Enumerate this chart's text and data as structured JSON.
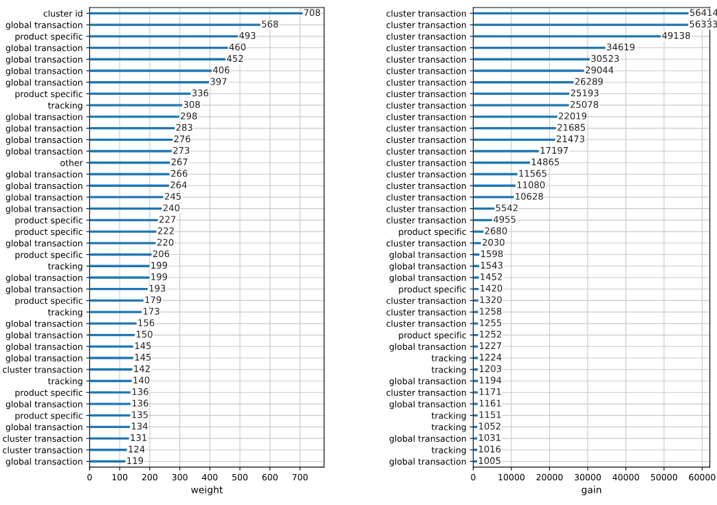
{
  "chart_data": [
    {
      "type": "bar",
      "orientation": "horizontal",
      "xlabel": "weight",
      "xlim": [
        0,
        780
      ],
      "xticks": [
        0,
        100,
        200,
        300,
        400,
        500,
        600,
        700
      ],
      "grid": true,
      "data_labels": true,
      "color": "#1f77b4",
      "categories": [
        "cluster id",
        "global transaction",
        "product specific",
        "global transaction",
        "global transaction",
        "global transaction",
        "global transaction",
        "product specific",
        "tracking",
        "global transaction",
        "global transaction",
        "global transaction",
        "global transaction",
        "other",
        "global transaction",
        "global transaction",
        "global transaction",
        "global transaction",
        "product specific",
        "product specific",
        "global transaction",
        "product specific",
        "tracking",
        "global transaction",
        "global transaction",
        "product specific",
        "tracking",
        "global transaction",
        "global transaction",
        "global transaction",
        "global transaction",
        "cluster transaction",
        "tracking",
        "product specific",
        "global transaction",
        "product specific",
        "global transaction",
        "cluster transaction",
        "cluster transaction",
        "global transaction"
      ],
      "values": [
        708,
        568,
        493,
        460,
        452,
        406,
        397,
        336,
        308,
        298,
        283,
        276,
        273,
        267,
        266,
        264,
        245,
        240,
        227,
        222,
        220,
        206,
        199,
        199,
        193,
        179,
        173,
        156,
        150,
        145,
        145,
        142,
        140,
        136,
        136,
        135,
        134,
        131,
        124,
        119
      ]
    },
    {
      "type": "bar",
      "orientation": "horizontal",
      "xlabel": "gain",
      "xlim": [
        0,
        62000
      ],
      "xticks": [
        0,
        10000,
        20000,
        30000,
        40000,
        50000,
        60000
      ],
      "grid": true,
      "data_labels": true,
      "color": "#1f77b4",
      "categories": [
        "cluster transaction",
        "cluster transaction",
        "cluster transaction",
        "cluster transaction",
        "cluster transaction",
        "cluster transaction",
        "cluster transaction",
        "cluster transaction",
        "cluster transaction",
        "cluster transaction",
        "cluster transaction",
        "cluster transaction",
        "cluster transaction",
        "cluster transaction",
        "cluster transaction",
        "cluster transaction",
        "cluster transaction",
        "cluster transaction",
        "cluster transaction",
        "product specific",
        "cluster transaction",
        "global transaction",
        "global transaction",
        "global transaction",
        "product specific",
        "cluster transaction",
        "cluster transaction",
        "cluster transaction",
        "product specific",
        "global transaction",
        "tracking",
        "tracking",
        "global transaction",
        "cluster transaction",
        "global transaction",
        "tracking",
        "tracking",
        "global transaction",
        "tracking",
        "global transaction"
      ],
      "values": [
        56414,
        56333,
        49138,
        34619,
        30523,
        29044,
        26289,
        25193,
        25078,
        22019,
        21685,
        21473,
        17197,
        14865,
        11565,
        11080,
        10628,
        5542,
        4955,
        2680,
        2030,
        1598,
        1543,
        1452,
        1420,
        1320,
        1258,
        1255,
        1252,
        1227,
        1224,
        1203,
        1194,
        1171,
        1161,
        1151,
        1052,
        1031,
        1016,
        1005
      ]
    }
  ]
}
